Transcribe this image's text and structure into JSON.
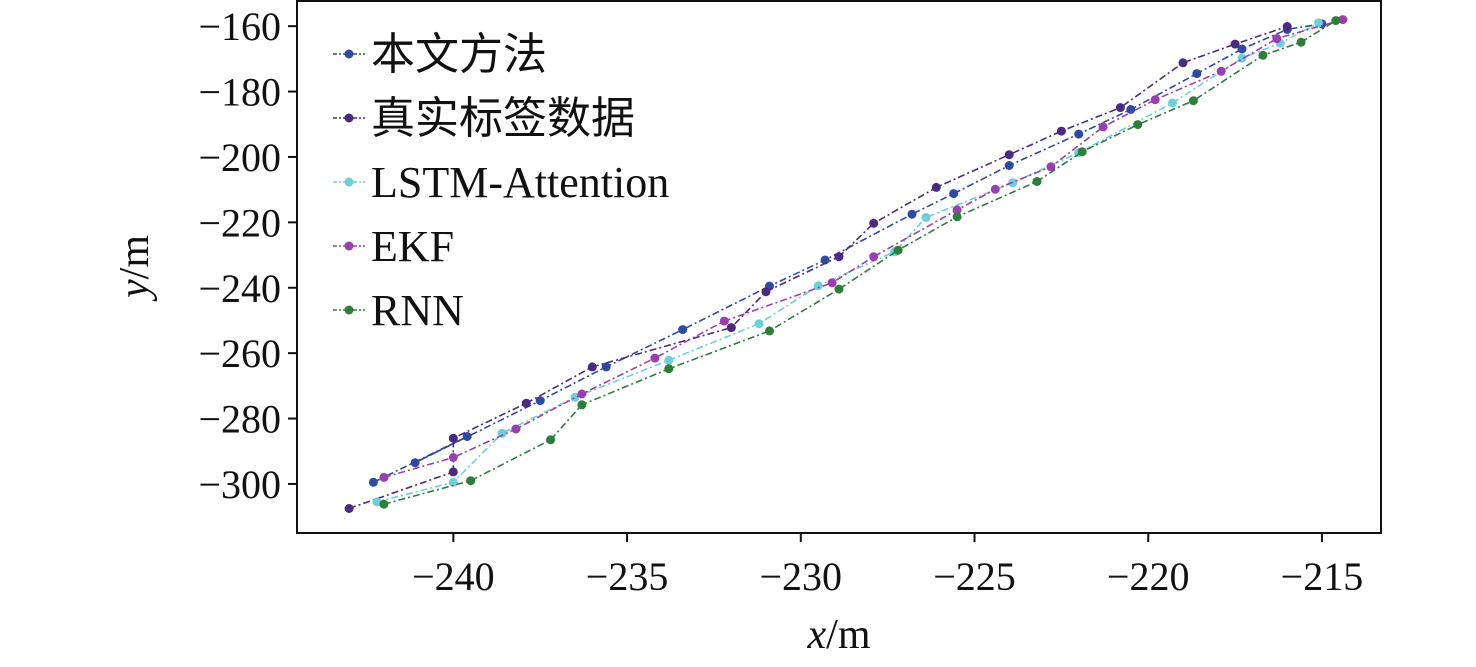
{
  "chart_data": {
    "type": "line",
    "xlabel_var": "x",
    "xlabel_unit": "/m",
    "ylabel_var": "y",
    "ylabel_unit": "/m",
    "xlim": [
      -244.5,
      -213.3
    ],
    "ylim": [
      -315,
      -152
    ],
    "xticks": [
      -240,
      -235,
      -230,
      -225,
      -220,
      -215
    ],
    "yticks": [
      -160,
      -180,
      -200,
      -220,
      -240,
      -260,
      -280,
      -300
    ],
    "xtick_labels": [
      "−240",
      "−235",
      "−230",
      "−225",
      "−220",
      "−215"
    ],
    "ytick_labels": [
      "−160",
      "−180",
      "−200",
      "−220",
      "−240",
      "−260",
      "−280",
      "−300"
    ],
    "legend_position": "top-left",
    "series": [
      {
        "name": "本文方法",
        "color": "#2f4a9e",
        "points": [
          [
            -242.3,
            -299.5
          ],
          [
            -239.6,
            -285.5
          ],
          [
            -241.1,
            -293.5
          ],
          [
            -237.5,
            -274.5
          ],
          [
            -235.6,
            -264.2
          ],
          [
            -233.4,
            -252.8
          ],
          [
            -230.9,
            -239.5
          ],
          [
            -229.3,
            -231.5
          ],
          [
            -226.8,
            -217.5
          ],
          [
            -225.6,
            -211.2
          ],
          [
            -224.0,
            -202.6
          ],
          [
            -222.0,
            -193.0
          ],
          [
            -220.5,
            -185.5
          ],
          [
            -218.6,
            -174.5
          ],
          [
            -217.3,
            -167.0
          ],
          [
            -216.0,
            -161.0
          ],
          [
            -215.0,
            -159.3
          ]
        ]
      },
      {
        "name": "真实标签数据",
        "color": "#4b2a7f",
        "points": [
          [
            -243.0,
            -307.5
          ],
          [
            -240.0,
            -296.3
          ],
          [
            -240.0,
            -286.0
          ],
          [
            -237.9,
            -275.3
          ],
          [
            -236.0,
            -264.2
          ],
          [
            -232.0,
            -252.2
          ],
          [
            -231.0,
            -241.2
          ],
          [
            -228.9,
            -230.5
          ],
          [
            -227.9,
            -220.3
          ],
          [
            -226.1,
            -209.3
          ],
          [
            -224.0,
            -199.3
          ],
          [
            -222.5,
            -192.1
          ],
          [
            -220.8,
            -184.9
          ],
          [
            -219.0,
            -171.2
          ],
          [
            -217.5,
            -165.5
          ],
          [
            -216.0,
            -160.1
          ]
        ]
      },
      {
        "name": "LSTM-Attention",
        "color": "#6fcfd8",
        "points": [
          [
            -242.2,
            -305.5
          ],
          [
            -240.0,
            -299.5
          ],
          [
            -238.6,
            -284.5
          ],
          [
            -236.5,
            -273.5
          ],
          [
            -233.8,
            -262.2
          ],
          [
            -231.2,
            -251.0
          ],
          [
            -229.5,
            -239.4
          ],
          [
            -227.3,
            -229.0
          ],
          [
            -226.4,
            -218.5
          ],
          [
            -223.9,
            -207.9
          ],
          [
            -222.0,
            -198.7
          ],
          [
            -219.3,
            -183.5
          ],
          [
            -217.3,
            -169.8
          ],
          [
            -216.2,
            -165.2
          ],
          [
            -215.1,
            -159.0
          ]
        ]
      },
      {
        "name": "EKF",
        "color": "#9a3fb0",
        "points": [
          [
            -242.0,
            -298.0
          ],
          [
            -240.0,
            -291.9
          ],
          [
            -238.2,
            -283.2
          ],
          [
            -236.3,
            -272.5
          ],
          [
            -234.2,
            -261.5
          ],
          [
            -232.2,
            -250.2
          ],
          [
            -229.1,
            -238.5
          ],
          [
            -227.9,
            -230.5
          ],
          [
            -225.5,
            -216.2
          ],
          [
            -224.4,
            -209.9
          ],
          [
            -222.8,
            -203.0
          ],
          [
            -221.3,
            -190.8
          ],
          [
            -219.8,
            -182.5
          ],
          [
            -217.9,
            -173.8
          ],
          [
            -216.3,
            -163.8
          ],
          [
            -214.4,
            -158.0
          ]
        ]
      },
      {
        "name": "RNN",
        "color": "#2e7d3b",
        "points": [
          [
            -242.0,
            -306.2
          ],
          [
            -239.5,
            -299.0
          ],
          [
            -237.2,
            -286.5
          ],
          [
            -236.3,
            -275.8
          ],
          [
            -233.8,
            -264.8
          ],
          [
            -230.9,
            -253.2
          ],
          [
            -228.9,
            -240.4
          ],
          [
            -227.2,
            -228.5
          ],
          [
            -225.5,
            -218.3
          ],
          [
            -223.2,
            -207.5
          ],
          [
            -221.9,
            -198.4
          ],
          [
            -220.3,
            -190.1
          ],
          [
            -218.7,
            -182.8
          ],
          [
            -216.7,
            -168.9
          ],
          [
            -215.6,
            -164.9
          ],
          [
            -214.6,
            -158.3
          ]
        ]
      }
    ]
  }
}
